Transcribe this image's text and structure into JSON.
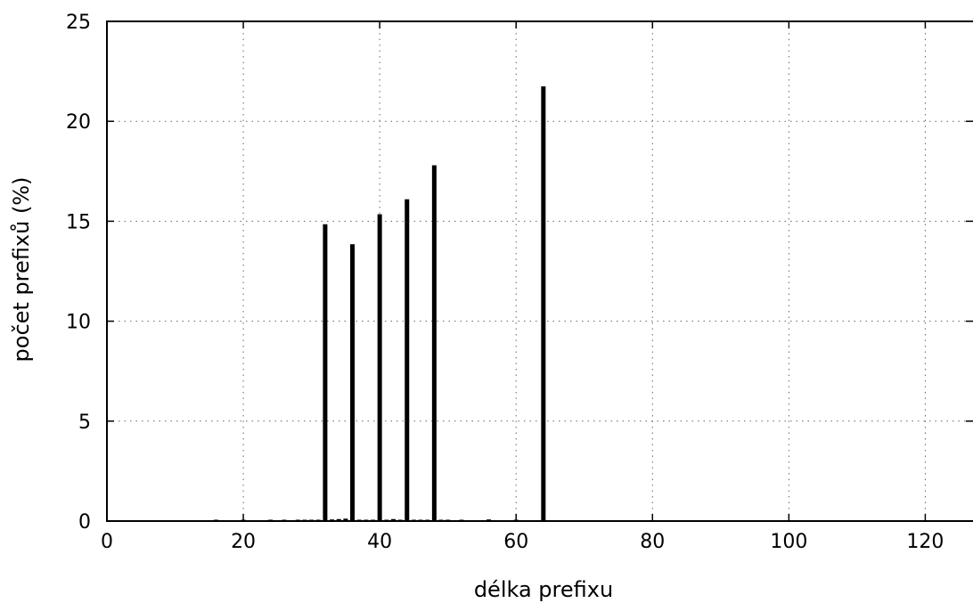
{
  "chart_data": {
    "type": "bar",
    "xlabel": "délka prefixu",
    "ylabel": "počet prefixů (%)",
    "xlim": [
      0,
      127
    ],
    "ylim": [
      0,
      25
    ],
    "x_ticks": [
      "0",
      "20",
      "40",
      "60",
      "80",
      "100",
      "120"
    ],
    "y_ticks": [
      "0",
      "5",
      "10",
      "15",
      "20",
      "25"
    ],
    "grid": true,
    "bar_color": "#000000",
    "x": [
      16,
      20,
      24,
      26,
      28,
      29,
      30,
      31,
      32,
      33,
      34,
      35,
      36,
      37,
      38,
      39,
      40,
      41,
      42,
      43,
      44,
      45,
      46,
      47,
      48,
      49,
      50,
      52,
      56,
      60,
      64
    ],
    "values": [
      0.02,
      0.02,
      0.03,
      0.03,
      0.04,
      0.04,
      0.03,
      0.03,
      14.85,
      0.08,
      0.1,
      0.12,
      13.85,
      0.05,
      0.05,
      0.05,
      15.35,
      0.05,
      0.1,
      0.05,
      16.1,
      0.05,
      0.05,
      0.05,
      17.8,
      0.03,
      0.03,
      0.03,
      0.08,
      0.03,
      21.75
    ]
  }
}
